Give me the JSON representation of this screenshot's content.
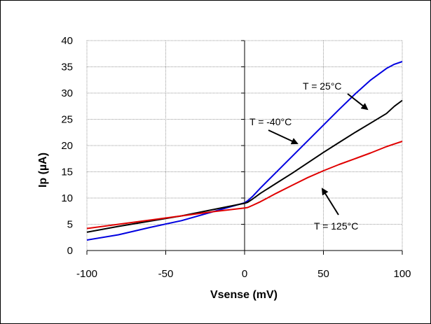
{
  "chart_data": {
    "type": "line",
    "title": "",
    "xlabel": "Vsense (mV)",
    "ylabel": "Ip (µA)",
    "xlim": [
      -100,
      100
    ],
    "ylim": [
      0,
      40
    ],
    "x_ticks": [
      -100,
      -50,
      0,
      50,
      100
    ],
    "y_ticks": [
      0,
      5,
      10,
      15,
      20,
      25,
      30,
      35,
      40
    ],
    "grid": "dotted",
    "legend": "none",
    "series": [
      {
        "color": "#0000e0",
        "x": [
          -100,
          -80,
          -60,
          -40,
          -20,
          0,
          2,
          5,
          10,
          20,
          30,
          40,
          50,
          60,
          70,
          80,
          90,
          95,
          100
        ],
        "y": [
          2.0,
          3.0,
          4.4,
          5.7,
          7.4,
          9.1,
          9.5,
          10.3,
          11.9,
          14.9,
          17.9,
          20.9,
          23.9,
          26.9,
          29.8,
          32.5,
          34.7,
          35.5,
          36.0
        ]
      },
      {
        "color": "#000000",
        "x": [
          -100,
          -80,
          -60,
          -40,
          -20,
          0,
          2,
          5,
          10,
          20,
          30,
          40,
          50,
          60,
          70,
          80,
          90,
          95,
          100
        ],
        "y": [
          3.5,
          4.6,
          5.6,
          6.6,
          7.8,
          9.0,
          9.2,
          9.8,
          10.9,
          12.8,
          14.7,
          16.7,
          18.7,
          20.6,
          22.5,
          24.3,
          26.1,
          27.5,
          28.6
        ]
      },
      {
        "color": "#e00000",
        "x": [
          -100,
          -80,
          -60,
          -40,
          -20,
          0,
          2,
          5,
          10,
          20,
          30,
          40,
          50,
          60,
          70,
          80,
          90,
          95,
          100
        ],
        "y": [
          4.2,
          5.0,
          5.8,
          6.6,
          7.4,
          8.1,
          8.2,
          8.6,
          9.3,
          10.9,
          12.4,
          13.9,
          15.2,
          16.4,
          17.5,
          18.6,
          19.8,
          20.3,
          20.8
        ]
      }
    ],
    "annotations": [
      {
        "text": "T = 25°C",
        "color": "#000000"
      },
      {
        "text": "T = -40°C",
        "color": "#000000"
      },
      {
        "text": "T = 125°C",
        "color": "#000000"
      }
    ]
  }
}
